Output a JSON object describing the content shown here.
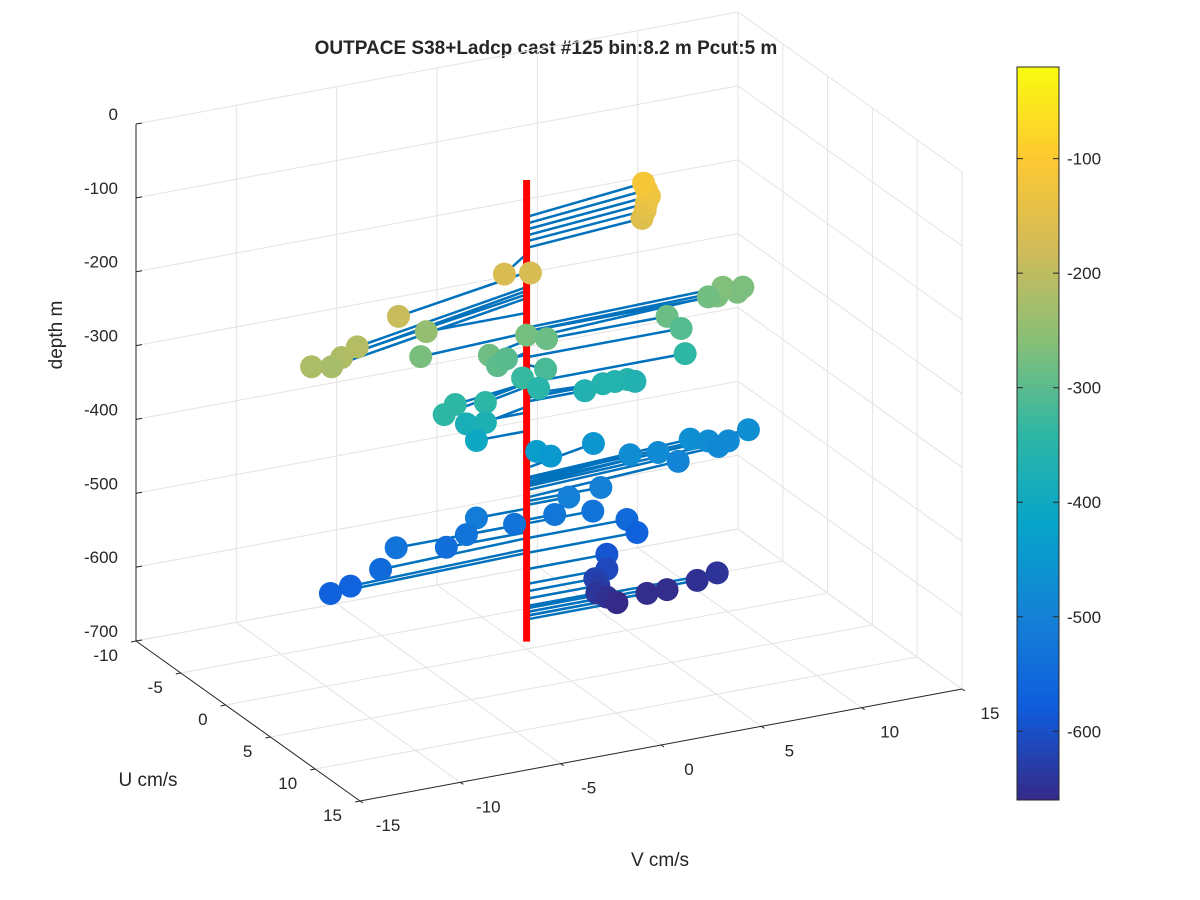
{
  "chart_data": {
    "type": "scatter",
    "projection": "3d",
    "title": "OUTPACE S38+Ladcp cast #125 bin:8.2 m  Pcut:5 m",
    "xlabel": "V cm/s",
    "ylabel": "U cm/s",
    "zlabel": "depth m",
    "xlim": [
      -15,
      15
    ],
    "ylim": [
      -10,
      15
    ],
    "zlim": [
      -700,
      0
    ],
    "x_ticks": [
      "-15",
      "-10",
      "-5",
      "0",
      "5",
      "10",
      "15"
    ],
    "y_ticks": [
      "-10",
      "-5",
      "0",
      "5",
      "10",
      "15"
    ],
    "z_ticks": [
      "0",
      "-100",
      "-200",
      "-300",
      "-400",
      "-500",
      "-600",
      "-700"
    ],
    "grid": true,
    "colorbar": {
      "range": [
        -660,
        -20
      ],
      "ticks": [
        "-100",
        "-200",
        "-300",
        "-400",
        "-500",
        "-600"
      ],
      "colors": [
        "#352a87",
        "#0f5cdd",
        "#1481d6",
        "#06a4ca",
        "#2eb7a4",
        "#87bf77",
        "#d1bb59",
        "#fec832",
        "#f9fb0e"
      ]
    },
    "stem_color": "#0072bd",
    "mast_color": "#ff0000",
    "mast_depth_range": [
      -65,
      -690
    ],
    "series": [
      {
        "points": [
          {
            "v": 6.5,
            "u": -1.5,
            "z": -115
          },
          {
            "v": 6.6,
            "u": -1.4,
            "z": -124
          },
          {
            "v": 6.7,
            "u": -1.3,
            "z": -132
          },
          {
            "v": 6.5,
            "u": -1.2,
            "z": -140
          },
          {
            "v": 6.4,
            "u": -1.1,
            "z": -148
          },
          {
            "v": 6.2,
            "u": -1.0,
            "z": -157
          },
          {
            "v": -2.0,
            "u": 2.0,
            "z": -165
          },
          {
            "v": -0.7,
            "u": 2.0,
            "z": -170
          },
          {
            "v": -7.5,
            "u": 2.5,
            "z": -190
          },
          {
            "v": -10.0,
            "u": 3.5,
            "z": -210
          },
          {
            "v": -11.0,
            "u": 4.0,
            "z": -215
          },
          {
            "v": -11.5,
            "u": 4.0,
            "z": -225
          },
          {
            "v": -12.5,
            "u": 4.0,
            "z": -220
          },
          {
            "v": -5.0,
            "u": 0.0,
            "z": -245
          },
          {
            "v": -5.5,
            "u": 0.5,
            "z": -272
          },
          {
            "v": -2.3,
            "u": 1.0,
            "z": -282
          },
          {
            "v": 0.0,
            "u": 0.0,
            "z": -275
          },
          {
            "v": -1.0,
            "u": 0.0,
            "z": -302
          },
          {
            "v": -1.9,
            "u": 1.0,
            "z": -298
          },
          {
            "v": 0.5,
            "u": 1.0,
            "z": -315
          },
          {
            "v": -0.2,
            "u": 0.0,
            "z": -332
          },
          {
            "v": 1.0,
            "u": 0.0,
            "z": -285
          },
          {
            "v": 7.0,
            "u": 0.0,
            "z": -285
          },
          {
            "v": 9.5,
            "u": -1.0,
            "z": -280
          },
          {
            "v": 9.5,
            "u": 0.0,
            "z": -270
          },
          {
            "v": 10.5,
            "u": 0.0,
            "z": -270
          },
          {
            "v": 10.0,
            "u": -0.5,
            "z": -265
          },
          {
            "v": 11.0,
            "u": -0.5,
            "z": -270
          },
          {
            "v": 7.7,
            "u": 0.0,
            "z": -305
          },
          {
            "v": 7.9,
            "u": 0.0,
            "z": -340
          },
          {
            "v": 5.4,
            "u": 0.0,
            "z": -365
          },
          {
            "v": 4.4,
            "u": 0.0,
            "z": -360
          },
          {
            "v": 4.8,
            "u": 0.5,
            "z": -355
          },
          {
            "v": 3.8,
            "u": 0.0,
            "z": -360
          },
          {
            "v": 2.9,
            "u": 0.0,
            "z": -365
          },
          {
            "v": 0.6,
            "u": 0.0,
            "z": -350
          },
          {
            "v": -5.0,
            "u": 2.0,
            "z": -340
          },
          {
            "v": -4.0,
            "u": 1.0,
            "z": -340
          },
          {
            "v": -2.5,
            "u": 1.0,
            "z": -345
          },
          {
            "v": -2.5,
            "u": 1.0,
            "z": -372
          },
          {
            "v": -3.0,
            "u": 0.0,
            "z": -380
          },
          {
            "v": -2.5,
            "u": 0.0,
            "z": -405
          },
          {
            "v": 0.5,
            "u": 0.0,
            "z": -435
          },
          {
            "v": 1.2,
            "u": 0.0,
            "z": -445
          },
          {
            "v": 4.0,
            "u": -1.5,
            "z": -455
          },
          {
            "v": 5.6,
            "u": -1.0,
            "z": -474
          },
          {
            "v": 7.0,
            "u": -1.0,
            "z": -478
          },
          {
            "v": 8.6,
            "u": -1.0,
            "z": -468
          },
          {
            "v": 9.5,
            "u": -1.0,
            "z": -475
          },
          {
            "v": 11.5,
            "u": -1.0,
            "z": -470
          },
          {
            "v": 10.5,
            "u": -1.0,
            "z": -480
          },
          {
            "v": 10.0,
            "u": -1.0,
            "z": -485
          },
          {
            "v": 8.0,
            "u": -1.0,
            "z": -495
          },
          {
            "v": 3.7,
            "u": 0.0,
            "z": -500
          },
          {
            "v": 2.1,
            "u": 0.0,
            "z": -505
          },
          {
            "v": -2.5,
            "u": 0.0,
            "z": -510
          },
          {
            "v": -3.0,
            "u": 0.0,
            "z": -530
          },
          {
            "v": -6.5,
            "u": 0.0,
            "z": -530
          },
          {
            "v": -7.5,
            "u": 0.5,
            "z": -550
          },
          {
            "v": -9.0,
            "u": 0.5,
            "z": -565
          },
          {
            "v": -10.0,
            "u": 0.5,
            "z": -570
          },
          {
            "v": -4.0,
            "u": 0.0,
            "z": -542
          },
          {
            "v": -0.6,
            "u": 0.0,
            "z": -528
          },
          {
            "v": 1.4,
            "u": 0.0,
            "z": -525
          },
          {
            "v": 3.3,
            "u": 0.0,
            "z": -530
          },
          {
            "v": 5.0,
            "u": 0.0,
            "z": -550
          },
          {
            "v": 5.5,
            "u": 0.0,
            "z": -570
          },
          {
            "v": 4.0,
            "u": 0.0,
            "z": -592
          },
          {
            "v": 4.0,
            "u": 0.0,
            "z": -612
          },
          {
            "v": 3.4,
            "u": 0.0,
            "z": -622
          },
          {
            "v": 3.6,
            "u": 0.0,
            "z": -632
          },
          {
            "v": 3.5,
            "u": 0.0,
            "z": -642
          },
          {
            "v": 4.0,
            "u": 0.0,
            "z": -650
          },
          {
            "v": 4.5,
            "u": 0.0,
            "z": -660
          },
          {
            "v": 6.0,
            "u": 0.0,
            "z": -655
          },
          {
            "v": 7.0,
            "u": 0.0,
            "z": -655
          },
          {
            "v": 8.5,
            "u": 0.0,
            "z": -650
          },
          {
            "v": 9.5,
            "u": 0.0,
            "z": -645
          }
        ]
      }
    ]
  }
}
